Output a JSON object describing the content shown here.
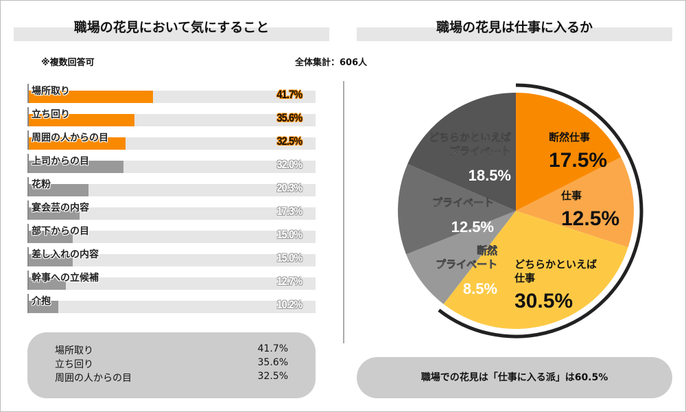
{
  "left": {
    "title": "職場の花見において気にすること",
    "note": "※複数回答可",
    "total": "全体集計：606人",
    "chart_data": {
      "type": "bar",
      "orientation": "horizontal",
      "categories": [
        "場所取り",
        "立ち回り",
        "周囲の人からの目",
        "上司からの目",
        "花粉",
        "宴会芸の内容",
        "部下からの目",
        "差し入れの内容",
        "幹事への立候補",
        "介抱"
      ],
      "values": [
        41.7,
        35.6,
        32.5,
        32.0,
        20.3,
        17.3,
        15.0,
        15.0,
        12.7,
        10.2
      ],
      "labels": [
        "41.7%",
        "35.6%",
        "32.5%",
        "32.0%",
        "20.3%",
        "17.3%",
        "15.0%",
        "15.0%",
        "12.7%",
        "10.2%"
      ],
      "highlight_count": 3,
      "colors": {
        "highlight": "#f98a00",
        "normal": "#999999",
        "track": "#e6e6e6"
      }
    },
    "summary": [
      {
        "label": "場所取り",
        "value": "41.7%"
      },
      {
        "label": "立ち回り",
        "value": "35.6%"
      },
      {
        "label": "周囲の人からの目",
        "value": "32.5%"
      }
    ]
  },
  "right": {
    "title": "職場の花見は仕事に入るか",
    "chart_data": {
      "type": "pie",
      "start": "top",
      "direction": "clockwise",
      "slices": [
        {
          "label": [
            "断然仕事"
          ],
          "value": 17.5,
          "text": "17.5%",
          "color": "#f98a00",
          "textColor": "#111"
        },
        {
          "label": [
            "仕事"
          ],
          "value": 12.5,
          "text": "12.5%",
          "color": "#fba84a",
          "textColor": "#111"
        },
        {
          "label": [
            "どちらかといえば",
            "仕事"
          ],
          "value": 30.5,
          "text": "30.5%",
          "color": "#fdc945",
          "textColor": "#111"
        },
        {
          "label": [
            "断然",
            "プライベート"
          ],
          "value": 8.5,
          "text": "8.5%",
          "color": "#999999",
          "textColor": "#fff"
        },
        {
          "label": [
            "プライベート"
          ],
          "value": 12.5,
          "text": "12.5%",
          "color": "#6e6e6e",
          "textColor": "#fff"
        },
        {
          "label": [
            "どちらかといえば",
            "プライベート"
          ],
          "value": 18.5,
          "text": "18.5%",
          "color": "#555555",
          "textColor": "#fff"
        }
      ],
      "highlight_arc_total": 60.5
    },
    "conclusion": "職場での花見は「仕事に入る派」は60.5%"
  }
}
